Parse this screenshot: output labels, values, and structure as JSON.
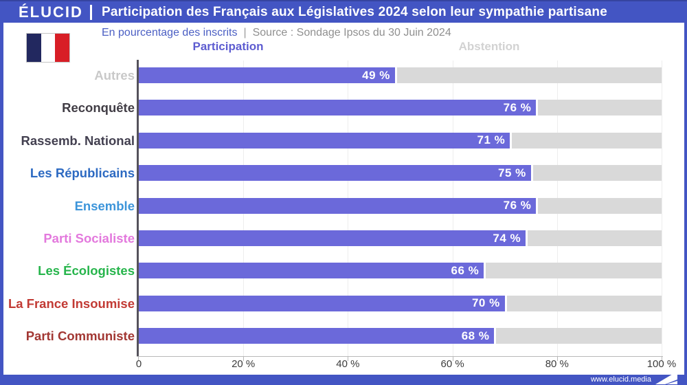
{
  "header": {
    "logo": "ÉLUCID",
    "title": "Participation des Français aux Législatives 2024 selon leur sympathie partisane"
  },
  "subtitle": {
    "metric": "En pourcentage des inscrits",
    "separator": "|",
    "source": "Source : Sondage Ipsos du 30 Juin 2024"
  },
  "columns": {
    "participation": "Participation",
    "abstention": "Abstention"
  },
  "footer": {
    "url": "www.elucid.media"
  },
  "colors": {
    "frame_blue": "#4355c3",
    "bar_participation": "#6b69da",
    "bar_abstention": "#d9d9d9",
    "participation_header": "#5d5cd0",
    "abstention_header": "#d2d2d2",
    "flag_blue": "#22285f",
    "flag_red": "#d81e26"
  },
  "chart_data": {
    "type": "bar",
    "orientation": "horizontal",
    "title": "Participation des Français aux Législatives 2024 selon leur sympathie partisane",
    "xlabel": "",
    "ylabel": "",
    "unit": "%",
    "xlim": [
      0,
      100
    ],
    "grid": true,
    "categories": [
      "Autres",
      "Reconquête",
      "Rassemb. National",
      "Les Républicains",
      "Ensemble",
      "Parti Socialiste",
      "Les Écologistes",
      "La France Insoumise",
      "Parti Communiste"
    ],
    "category_colors": [
      "#c9c9c9",
      "#413d45",
      "#434050",
      "#2d6ac2",
      "#3d95da",
      "#e379dd",
      "#27b54c",
      "#c23a34",
      "#a23733"
    ],
    "series": [
      {
        "name": "Participation",
        "values": [
          49,
          76,
          71,
          75,
          76,
          74,
          66,
          70,
          68
        ]
      },
      {
        "name": "Abstention",
        "values": [
          51,
          24,
          29,
          25,
          24,
          26,
          34,
          30,
          32
        ]
      }
    ],
    "value_labels": [
      "49 %",
      "76 %",
      "71 %",
      "75 %",
      "76 %",
      "74 %",
      "66 %",
      "70 %",
      "68 %"
    ],
    "x_ticks": [
      {
        "label": "0",
        "value": 0
      },
      {
        "label": "20 %",
        "value": 20
      },
      {
        "label": "40 %",
        "value": 40
      },
      {
        "label": "60 %",
        "value": 60
      },
      {
        "label": "80 %",
        "value": 80
      },
      {
        "label": "100 %",
        "value": 100
      }
    ]
  }
}
